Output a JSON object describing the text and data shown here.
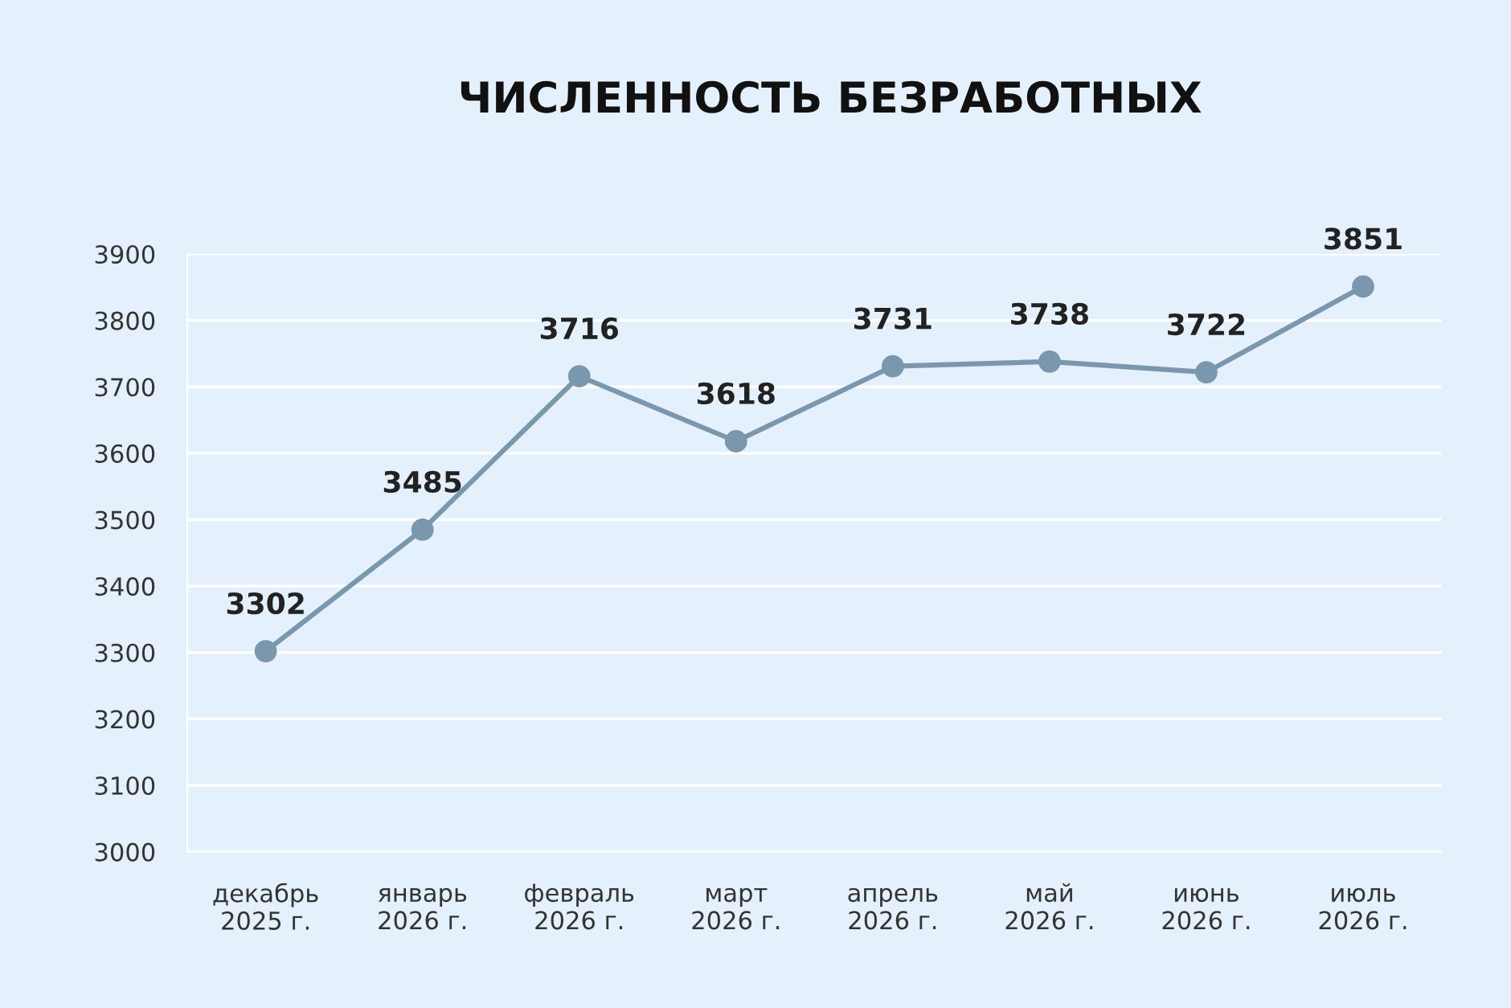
{
  "chart_data": {
    "type": "line",
    "title": "ЧИСЛЕННОСТЬ БЕЗРАБОТНЫХ",
    "categories": [
      "декабрь\n2025 г.",
      "январь\n2026 г.",
      "февраль\n2026 г.",
      "март\n2026 г.",
      "апрель\n2026 г.",
      "май\n2026 г.",
      "июнь\n2026 г.",
      "июль\n2026 г."
    ],
    "series": [
      {
        "color": "#7b97ad",
        "values": [
          3302,
          3485,
          3716,
          3618,
          3731,
          3738,
          3722,
          3851
        ]
      }
    ],
    "ylim": [
      3000,
      3900
    ],
    "yticks": [
      3000,
      3100,
      3200,
      3300,
      3400,
      3500,
      3600,
      3700,
      3800,
      3900
    ],
    "grid": "y",
    "marker": "circle",
    "line_style": "solid",
    "data_labels": true
  }
}
